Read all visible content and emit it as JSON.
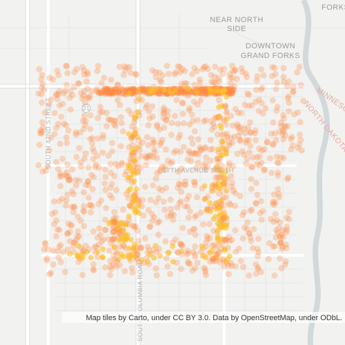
{
  "map": {
    "labels": {
      "near_north_side": [
        "NEAR  NORTH",
        "SIDE"
      ],
      "downtown": [
        "DOWNTOWN",
        "GRAND FORKS"
      ],
      "forks": "FORKS",
      "south_42nd": "SOUTH 42ND STREET",
      "avenue_17th": "17TH AVENUE SOUTH",
      "columbia": "SOUTH COLUMBIA ROAD",
      "minnesota": "MINNESOTA",
      "north_dakota": "NORTH DAKOTA",
      "shield": "31"
    },
    "attribution": "Map tiles by Carto, under CC BY 3.0. Data by OpenStreetMap, under ODbL."
  }
}
